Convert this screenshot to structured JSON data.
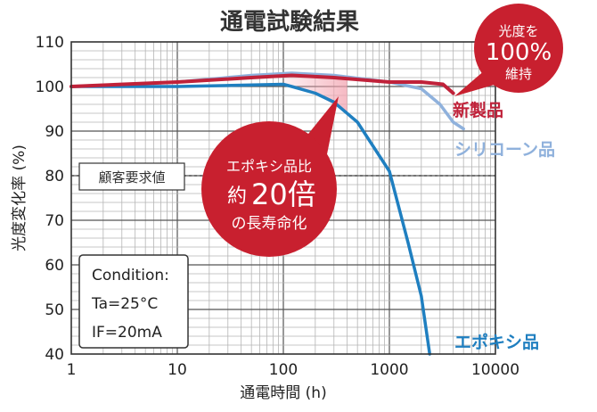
{
  "chart_data": {
    "type": "line",
    "title": "通電試験結果",
    "xlabel": "通電時間 (h)",
    "ylabel": "光度変化率 (%)",
    "x_scale": "log",
    "xlim": [
      1,
      10000
    ],
    "ylim": [
      40,
      110
    ],
    "x_ticks": [
      1,
      10,
      100,
      1000,
      10000
    ],
    "x_tick_labels": [
      "1",
      "10",
      "100",
      "1000",
      "10000"
    ],
    "y_ticks": [
      40,
      50,
      60,
      70,
      80,
      90,
      100,
      110
    ],
    "y_tick_labels": [
      "40",
      "50",
      "60",
      "70",
      "80",
      "90",
      "100",
      "110"
    ],
    "grid": true,
    "series": [
      {
        "name": "新製品",
        "color": "#c0223a",
        "x": [
          1,
          10,
          50,
          120,
          300,
          1000,
          2000,
          3200,
          4000
        ],
        "y": [
          100,
          101,
          102,
          102.5,
          102,
          101,
          101,
          100.5,
          98.5
        ]
      },
      {
        "name": "シリコーン品",
        "color": "#8fb1dc",
        "x": [
          1,
          10,
          50,
          120,
          300,
          1000,
          2000,
          3000,
          4000,
          5000
        ],
        "y": [
          100,
          101,
          102.5,
          103,
          102.5,
          101,
          99.5,
          96,
          92,
          90.5
        ]
      },
      {
        "name": "エポキシ品",
        "color": "#1f7fc0",
        "x": [
          1,
          10,
          100,
          120,
          200,
          300,
          500,
          1000,
          1500,
          2000,
          2400
        ],
        "y": [
          100,
          100,
          100.5,
          100,
          98.5,
          96.5,
          92,
          81,
          65,
          53,
          40
        ]
      }
    ],
    "threshold": {
      "y": 80,
      "label": "顧客要求値"
    },
    "conditions": [
      "Condition:",
      "Ta=25°C",
      "IF=20mA"
    ],
    "callouts": {
      "maintain": {
        "line1": "光度を",
        "line2": "100%",
        "line3": "維持"
      },
      "life": {
        "line1": "エポキシ品比",
        "line2a": "約",
        "line2b": "20倍",
        "line3": "の長寿命化"
      }
    }
  }
}
